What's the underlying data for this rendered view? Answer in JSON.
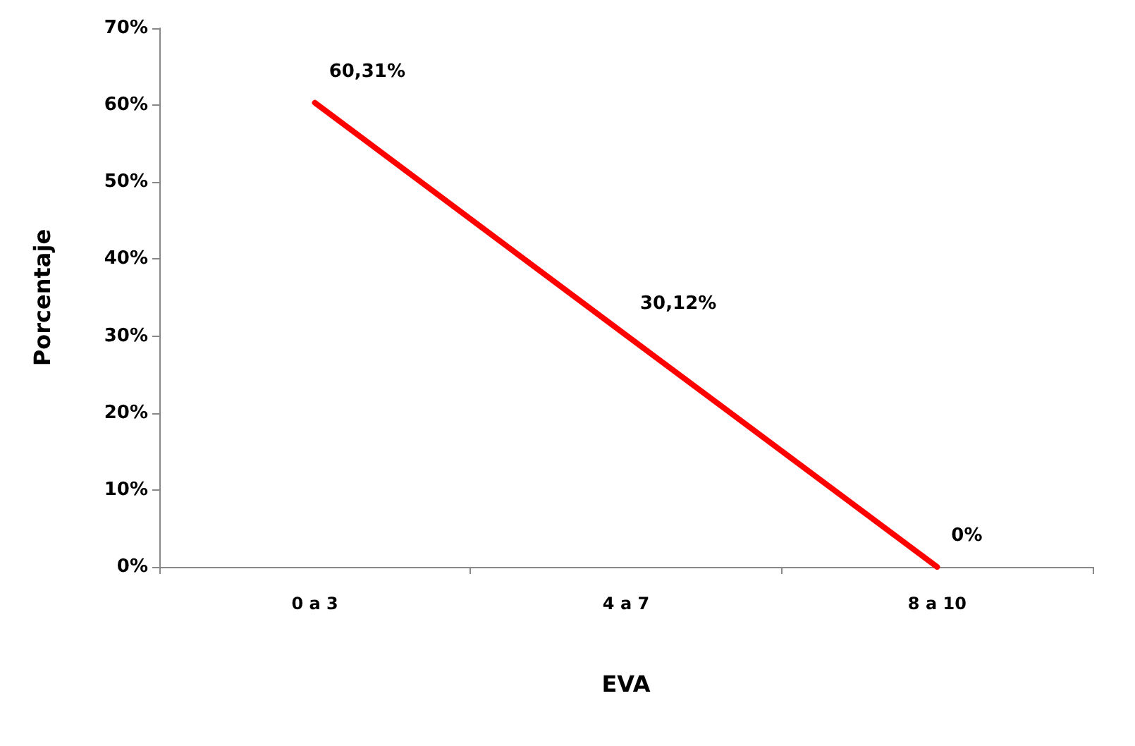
{
  "chart_data": {
    "type": "line",
    "xlabel": "EVA",
    "ylabel": "Porcentaje",
    "categories": [
      "0 a 3",
      "4 a 7",
      "8 a 10"
    ],
    "series": [
      {
        "color": "#ff0000",
        "values": [
          60.31,
          30.12,
          0
        ],
        "value_labels": [
          "60,31%",
          "30,12%",
          "0%"
        ]
      }
    ],
    "ylim": [
      0,
      70
    ],
    "yticks": [
      {
        "value": 0,
        "label": "0%"
      },
      {
        "value": 10,
        "label": "10%"
      },
      {
        "value": 20,
        "label": "20%"
      },
      {
        "value": 30,
        "label": "30%"
      },
      {
        "value": 40,
        "label": "40%"
      },
      {
        "value": 50,
        "label": "50%"
      },
      {
        "value": 60,
        "label": "60%"
      },
      {
        "value": 70,
        "label": "70%"
      }
    ],
    "grid": false,
    "marker": "none",
    "line_style": "solid"
  }
}
